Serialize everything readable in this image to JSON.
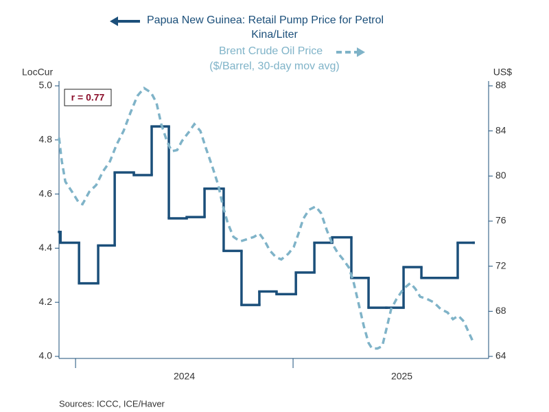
{
  "chart_data": {
    "type": "line",
    "legend": [
      {
        "name": "Papua New Guinea: Retail Pump Price for Petrol",
        "note": "Kina/Liter"
      },
      {
        "name": "Brent Crude Oil Price",
        "note": "($/Barrel, 30-day mov avg)"
      }
    ],
    "ylabel": "LocCur",
    "y2label": "US$",
    "annotation": "r = 0.77",
    "source": "Sources:  ICCC, ICE/Haver",
    "xlim": [
      2023.924,
      2025.899
    ],
    "xticks": [
      {
        "value": 2024.5,
        "label": "2024"
      },
      {
        "value": 2025.5,
        "label": "2025"
      }
    ],
    "ylim": [
      4.0,
      5.0
    ],
    "yticks": [
      {
        "value": 4,
        "label": "4.0"
      },
      4.2,
      4.4,
      4.6,
      4.8,
      {
        "value": 5,
        "label": "5.0"
      }
    ],
    "y2lim": [
      64,
      88
    ],
    "y2ticks": [
      64,
      68,
      72,
      76,
      80,
      84,
      88
    ],
    "grid": false,
    "series": [
      {
        "name": "Papua New Guinea: Retail Pump Price for Petrol",
        "color": "#1b4f7a",
        "drawstyle": "steps-post",
        "axis": "y",
        "x": [
          2023.924,
          2023.931,
          2024.016,
          2024.104,
          2024.18,
          2024.268,
          2024.35,
          2024.429,
          2024.511,
          2024.593,
          2024.681,
          2024.763,
          2024.845,
          2024.924,
          2025.013,
          2025.098,
          2025.18,
          2025.268,
          2025.347,
          2025.429,
          2025.508,
          2025.59,
          2025.675,
          2025.757,
          2025.83
        ],
        "values": [
          4.46,
          4.42,
          4.27,
          4.41,
          4.68,
          4.67,
          4.85,
          4.51,
          4.515,
          4.62,
          4.39,
          4.19,
          4.24,
          4.23,
          4.31,
          4.42,
          4.44,
          4.29,
          4.18,
          4.18,
          4.33,
          4.29,
          4.29,
          4.42,
          4.42
        ]
      },
      {
        "name": "Brent Crude Oil Price",
        "color": "#7fb3c8",
        "dashed": true,
        "axis": "y2",
        "x": [
          2023.924,
          2023.937,
          2023.953,
          2023.984,
          2024.016,
          2024.032,
          2024.063,
          2024.095,
          2024.126,
          2024.158,
          2024.189,
          2024.221,
          2024.252,
          2024.284,
          2024.315,
          2024.347,
          2024.372,
          2024.394,
          2024.42,
          2024.442,
          2024.467,
          2024.489,
          2024.521,
          2024.546,
          2024.574,
          2024.599,
          2024.631,
          2024.656,
          2024.678,
          2024.7,
          2024.726,
          2024.757,
          2024.789,
          2024.82,
          2024.845,
          2024.868,
          2024.893,
          2024.921,
          2024.946,
          2024.978,
          2025.003,
          2025.025,
          2025.047,
          2025.073,
          2025.104,
          2025.129,
          2025.155,
          2025.18,
          2025.205,
          2025.23,
          2025.256,
          2025.278,
          2025.3,
          2025.325,
          2025.347,
          2025.363,
          2025.388,
          2025.41,
          2025.429,
          2025.451,
          2025.476,
          2025.508,
          2025.539,
          2025.562,
          2025.584,
          2025.615,
          2025.647,
          2025.678,
          2025.71,
          2025.735,
          2025.76,
          2025.785,
          2025.808,
          2025.83
        ],
        "values": [
          83.4,
          81.3,
          79.5,
          78.6,
          77.6,
          77.5,
          78.6,
          79.2,
          80.4,
          81.3,
          82.8,
          84.0,
          85.6,
          87.1,
          87.8,
          87.4,
          86.5,
          84.6,
          83.1,
          82.2,
          82.3,
          83.1,
          83.9,
          84.6,
          84.0,
          82.5,
          80.7,
          79.2,
          77.3,
          75.8,
          74.6,
          74.2,
          74.4,
          74.6,
          74.9,
          74.3,
          73.4,
          72.8,
          72.6,
          73.1,
          73.7,
          74.9,
          76.2,
          77.0,
          77.3,
          76.7,
          75.2,
          74.0,
          73.2,
          72.6,
          71.9,
          70.6,
          68.8,
          66.7,
          65.2,
          64.7,
          64.7,
          64.9,
          66.4,
          68.2,
          69.1,
          70.0,
          70.5,
          70.0,
          69.3,
          69.1,
          68.8,
          68.2,
          67.9,
          67.3,
          67.6,
          67.1,
          66.1,
          65.2
        ]
      }
    ]
  }
}
